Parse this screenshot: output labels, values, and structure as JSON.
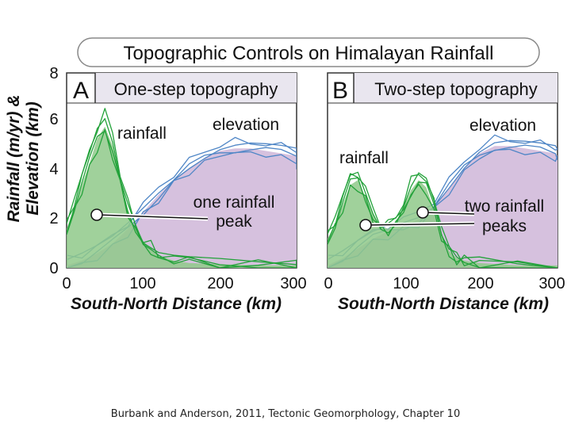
{
  "figure": {
    "title": "Topographic Controls on Himalayan Rainfall",
    "ylabel_line1": "Rainfall (m/yr) &",
    "ylabel_line2": "Elevation (km)",
    "y_ticks": [
      "0",
      "2",
      "4",
      "6",
      "8"
    ]
  },
  "colors": {
    "rainfall_line": "#23a23a",
    "rainfall_fill": "#8fc98a",
    "elevation_line": "#4f86c6",
    "elevation_fill": "#d6c1de",
    "header_fill": "#e9e6ef"
  },
  "chart_data": [
    {
      "type": "area",
      "panel_letter": "A",
      "panel_title": "One-step topography",
      "xlabel": "South-North Distance (km)",
      "x_ticks": [
        "0",
        "100",
        "200",
        "300"
      ],
      "xlim": [
        0,
        340
      ],
      "ylim": [
        0,
        8
      ],
      "annotations": {
        "rainfall": "rainfall",
        "elevation": "elevation",
        "peak_line1": "one rainfall",
        "peak_line2": "peak"
      },
      "series": [
        {
          "name": "rainfall",
          "x": [
            0,
            10,
            20,
            30,
            40,
            50,
            60,
            70,
            80,
            90,
            100,
            110,
            120,
            140,
            160,
            200,
            250,
            300,
            340
          ],
          "values": [
            1.6,
            2.5,
            3.4,
            4.3,
            5.3,
            5.8,
            5.0,
            3.6,
            2.4,
            1.6,
            1.1,
            0.8,
            0.5,
            0.3,
            0.2,
            0.15,
            0.1,
            0.1,
            0.1
          ]
        },
        {
          "name": "elevation",
          "x": [
            0,
            20,
            40,
            60,
            80,
            100,
            120,
            140,
            160,
            180,
            200,
            220,
            240,
            260,
            280,
            300,
            320,
            340
          ],
          "values": [
            0.1,
            0.3,
            0.6,
            1.0,
            1.6,
            2.3,
            3.0,
            3.6,
            4.1,
            4.5,
            4.8,
            4.9,
            4.9,
            4.8,
            4.7,
            4.6,
            4.5,
            4.4
          ]
        }
      ]
    },
    {
      "type": "area",
      "panel_letter": "B",
      "panel_title": "Two-step topography",
      "xlabel": "South-North Distance (km)",
      "x_ticks": [
        "0",
        "100",
        "200",
        "300"
      ],
      "xlim": [
        0,
        320
      ],
      "ylim": [
        0,
        8
      ],
      "annotations": {
        "rainfall": "rainfall",
        "elevation": "elevation",
        "peak_line1": "two rainfall",
        "peak_line2": "peaks"
      },
      "series": [
        {
          "name": "rainfall",
          "x": [
            0,
            10,
            20,
            30,
            40,
            50,
            60,
            70,
            80,
            90,
            100,
            110,
            120,
            130,
            140,
            150,
            160,
            170,
            180,
            200,
            250,
            320
          ],
          "values": [
            1.2,
            1.8,
            2.6,
            3.4,
            3.6,
            2.9,
            2.2,
            1.7,
            1.6,
            1.9,
            2.5,
            3.2,
            3.6,
            3.3,
            2.4,
            1.4,
            0.7,
            0.4,
            0.3,
            0.2,
            0.1,
            0.1
          ]
        },
        {
          "name": "elevation",
          "x": [
            0,
            20,
            40,
            60,
            80,
            100,
            120,
            140,
            160,
            180,
            200,
            220,
            240,
            260,
            280,
            300,
            320
          ],
          "values": [
            0.1,
            0.4,
            0.8,
            1.2,
            1.5,
            1.7,
            2.0,
            2.5,
            3.3,
            4.1,
            4.7,
            5.0,
            5.0,
            4.9,
            4.8,
            4.7,
            4.6
          ]
        }
      ]
    }
  ],
  "caption": "Burbank and Anderson, 2011, Tectonic Geomorphology, Chapter 10"
}
